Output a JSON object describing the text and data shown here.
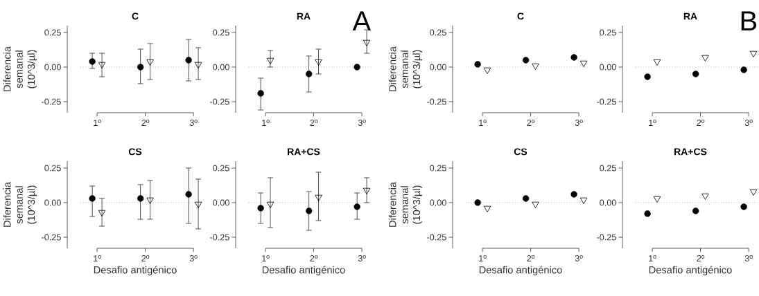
{
  "chart_data": [
    {
      "type": "scatter",
      "title": "C",
      "ylabel": "Diferencia semanal (10^3/µl)",
      "categories": [
        "1º",
        "2º",
        "3º"
      ],
      "ylim": [
        -0.33,
        0.3
      ],
      "yticks": [
        {
          "value": -0.25,
          "label": "-0.25"
        },
        {
          "value": 0,
          "label": "0.00"
        },
        {
          "value": 0.25,
          "label": "0.25"
        }
      ],
      "ref_lines": [
        {
          "axis": "y",
          "value": 0,
          "color": "#b0b0b0",
          "line_style": "dotted"
        }
      ],
      "series": [
        {
          "color": "#000000",
          "marker": "circle",
          "values": [
            0.04,
            0.0,
            0.05
          ],
          "errors": [
            [
              -0.01,
              0.1
            ],
            [
              -0.12,
              0.13
            ],
            [
              -0.1,
              0.2
            ]
          ]
        },
        {
          "color": "#000000",
          "marker": "triangle",
          "values": [
            0.02,
            0.04,
            0.02
          ],
          "errors": [
            [
              -0.07,
              0.1
            ],
            [
              -0.09,
              0.17
            ],
            [
              -0.09,
              0.14
            ]
          ]
        }
      ]
    },
    {
      "type": "scatter",
      "title": "RA",
      "annotations": [
        "A"
      ],
      "categories": [
        "1º",
        "2º",
        "3º"
      ],
      "ylim": [
        -0.33,
        0.3
      ],
      "yticks": [
        {
          "value": -0.25,
          "label": "-0.25"
        },
        {
          "value": 0,
          "label": "0.00"
        },
        {
          "value": 0.25,
          "label": "0.25"
        }
      ],
      "ref_lines": [
        {
          "axis": "y",
          "value": 0,
          "color": "#b0b0b0",
          "line_style": "dotted"
        }
      ],
      "series": [
        {
          "color": "#000000",
          "marker": "circle",
          "values": [
            -0.19,
            -0.05,
            0.0
          ],
          "errors": [
            [
              -0.31,
              -0.08
            ],
            [
              -0.18,
              0.08
            ],
            null
          ]
        },
        {
          "color": "#000000",
          "marker": "triangle",
          "values": [
            0.05,
            0.04,
            0.18
          ],
          "errors": [
            [
              0.0,
              0.12
            ],
            [
              -0.05,
              0.13
            ],
            [
              0.1,
              0.27
            ]
          ]
        }
      ]
    },
    {
      "type": "scatter",
      "title": "C",
      "ylabel": "Diferencia semanal (10^3/µl)",
      "categories": [
        "1º",
        "2º",
        "3º"
      ],
      "ylim": [
        -0.33,
        0.3
      ],
      "yticks": [
        {
          "value": -0.25,
          "label": "-0.25"
        },
        {
          "value": 0,
          "label": "0.00"
        },
        {
          "value": 0.25,
          "label": "0.25"
        }
      ],
      "ref_lines": [
        {
          "axis": "y",
          "value": 0,
          "color": "#b0b0b0",
          "line_style": "dotted"
        }
      ],
      "series": [
        {
          "color": "#000000",
          "marker": "circle",
          "values": [
            0.02,
            0.05,
            0.07
          ]
        },
        {
          "color": "#000000",
          "marker": "triangle",
          "values": [
            -0.02,
            0.01,
            0.03
          ]
        }
      ]
    },
    {
      "type": "scatter",
      "title": "RA",
      "annotations": [
        "B"
      ],
      "categories": [
        "1º",
        "2º",
        "3º"
      ],
      "ylim": [
        -0.33,
        0.3
      ],
      "yticks": [
        {
          "value": -0.25,
          "label": "-0.25"
        },
        {
          "value": 0,
          "label": "0.00"
        },
        {
          "value": 0.25,
          "label": "0.25"
        }
      ],
      "ref_lines": [
        {
          "axis": "y",
          "value": 0,
          "color": "#b0b0b0",
          "line_style": "dotted"
        }
      ],
      "series": [
        {
          "color": "#000000",
          "marker": "circle",
          "values": [
            -0.07,
            -0.05,
            -0.02
          ]
        },
        {
          "color": "#000000",
          "marker": "triangle",
          "values": [
            0.04,
            0.07,
            0.1
          ]
        }
      ]
    },
    {
      "type": "scatter",
      "title": "CS",
      "ylabel": "Diferencia semanal (10^3/µl)",
      "xlabel": "Desafio antigénico",
      "categories": [
        "1º",
        "2º",
        "3º"
      ],
      "ylim": [
        -0.33,
        0.3
      ],
      "yticks": [
        {
          "value": -0.25,
          "label": "-0.25"
        },
        {
          "value": 0,
          "label": "0.00"
        },
        {
          "value": 0.25,
          "label": "0.25"
        }
      ],
      "ref_lines": [
        {
          "axis": "y",
          "value": 0,
          "color": "#b0b0b0",
          "line_style": "dotted"
        }
      ],
      "series": [
        {
          "color": "#000000",
          "marker": "circle",
          "values": [
            0.03,
            0.03,
            0.06
          ],
          "errors": [
            [
              -0.1,
              0.12
            ],
            [
              -0.12,
              0.13
            ],
            [
              -0.15,
              0.25
            ]
          ]
        },
        {
          "color": "#000000",
          "marker": "triangle",
          "values": [
            -0.07,
            0.02,
            -0.01
          ],
          "errors": [
            [
              -0.17,
              0.03
            ],
            [
              -0.12,
              0.16
            ],
            [
              -0.19,
              0.17
            ]
          ]
        }
      ]
    },
    {
      "type": "scatter",
      "title": "RA+CS",
      "xlabel": "Desafio antigénico",
      "categories": [
        "1º",
        "2º",
        "3º"
      ],
      "ylim": [
        -0.33,
        0.3
      ],
      "yticks": [
        {
          "value": -0.25,
          "label": "-0.25"
        },
        {
          "value": 0,
          "label": "0.00"
        },
        {
          "value": 0.25,
          "label": "0.25"
        }
      ],
      "ref_lines": [
        {
          "axis": "y",
          "value": 0,
          "color": "#b0b0b0",
          "line_style": "dotted"
        }
      ],
      "series": [
        {
          "color": "#000000",
          "marker": "circle",
          "values": [
            -0.04,
            -0.06,
            -0.03
          ],
          "errors": [
            [
              -0.15,
              0.07
            ],
            [
              -0.2,
              0.08
            ],
            [
              -0.12,
              0.07
            ]
          ]
        },
        {
          "color": "#000000",
          "marker": "triangle",
          "values": [
            -0.01,
            0.04,
            0.09
          ],
          "errors": [
            [
              -0.18,
              0.18
            ],
            [
              -0.13,
              0.22
            ],
            [
              0.0,
              0.18
            ]
          ]
        }
      ]
    },
    {
      "type": "scatter",
      "title": "CS",
      "ylabel": "Diferencia semanal (10^3/µl)",
      "xlabel": "Desafio antigénico",
      "categories": [
        "1º",
        "2º",
        "3º"
      ],
      "ylim": [
        -0.33,
        0.3
      ],
      "yticks": [
        {
          "value": -0.25,
          "label": "-0.25"
        },
        {
          "value": 0,
          "label": "0.00"
        },
        {
          "value": 0.25,
          "label": "0.25"
        }
      ],
      "ref_lines": [
        {
          "axis": "y",
          "value": 0,
          "color": "#b0b0b0",
          "line_style": "dotted"
        }
      ],
      "series": [
        {
          "color": "#000000",
          "marker": "circle",
          "values": [
            0.0,
            0.03,
            0.06
          ]
        },
        {
          "color": "#000000",
          "marker": "triangle",
          "values": [
            -0.04,
            -0.01,
            0.02
          ]
        }
      ]
    },
    {
      "type": "scatter",
      "title": "RA+CS",
      "xlabel": "Desafio antigénico",
      "categories": [
        "1º",
        "2º",
        "3º"
      ],
      "ylim": [
        -0.33,
        0.3
      ],
      "yticks": [
        {
          "value": -0.25,
          "label": "-0.25"
        },
        {
          "value": 0,
          "label": "0.00"
        },
        {
          "value": 0.25,
          "label": "0.25"
        }
      ],
      "ref_lines": [
        {
          "axis": "y",
          "value": 0,
          "color": "#b0b0b0",
          "line_style": "dotted"
        }
      ],
      "series": [
        {
          "color": "#000000",
          "marker": "circle",
          "values": [
            -0.08,
            -0.06,
            -0.03
          ]
        },
        {
          "color": "#000000",
          "marker": "triangle",
          "values": [
            0.03,
            0.05,
            0.08
          ]
        }
      ]
    }
  ]
}
